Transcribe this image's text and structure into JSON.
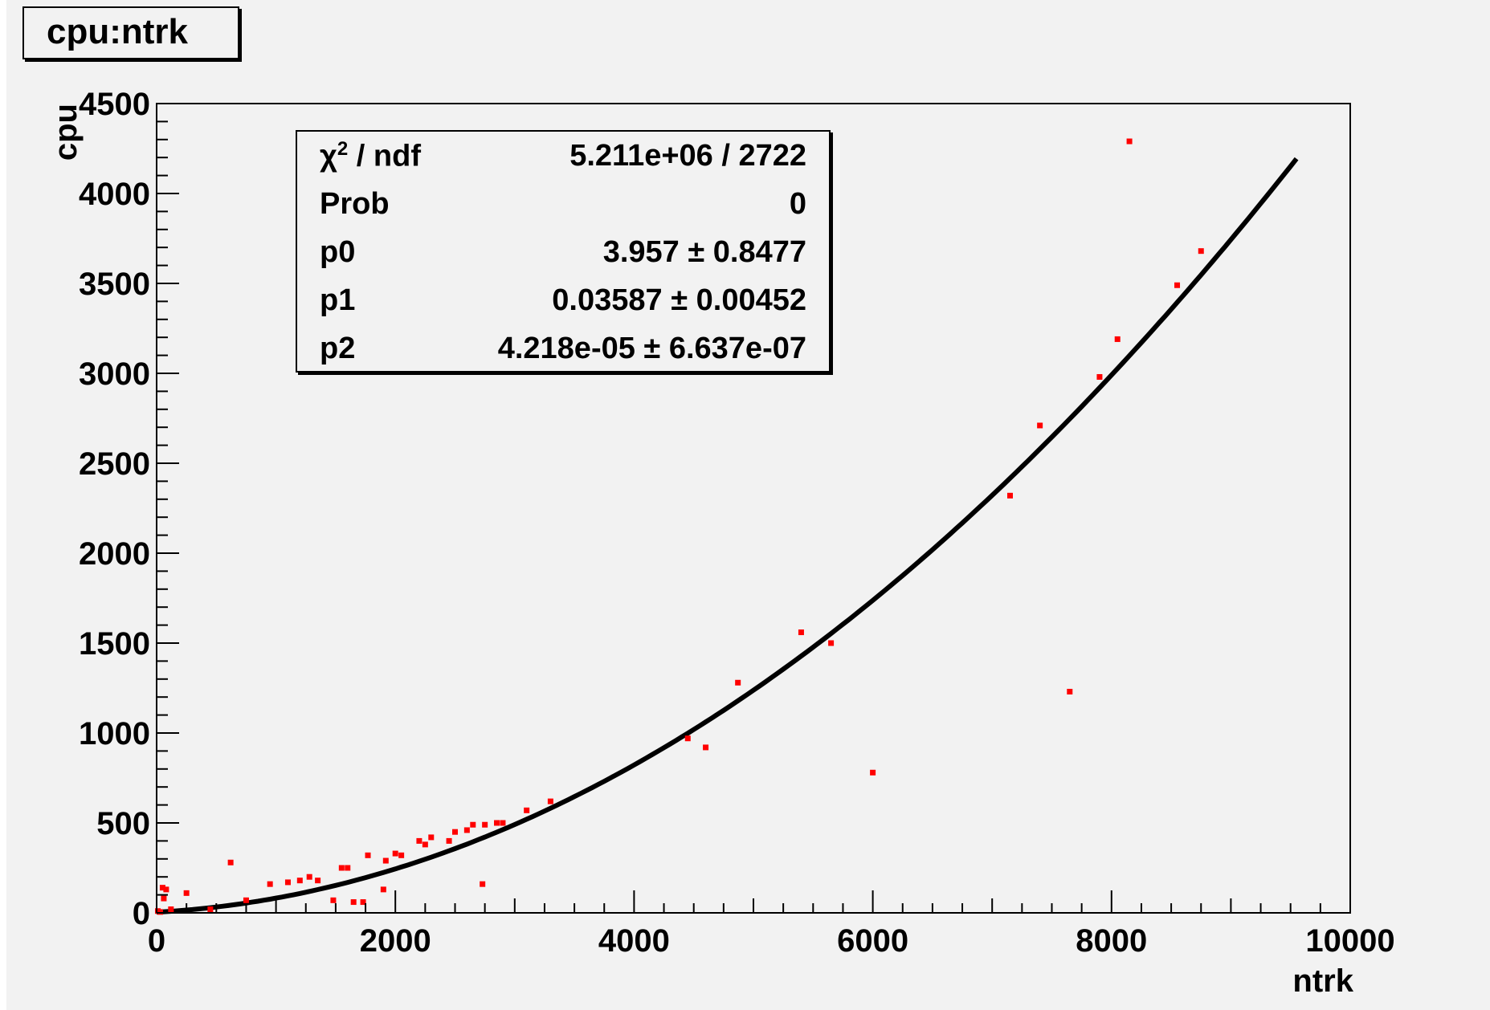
{
  "title": "cpu:ntrk",
  "stats": {
    "rows": [
      {
        "name": "χ² / ndf",
        "value": "5.211e+06 / 2722"
      },
      {
        "name": "Prob",
        "value": "0"
      },
      {
        "name": "p0",
        "value": "3.957 ± 0.8477"
      },
      {
        "name": "p1",
        "value": "0.03587 ± 0.00452"
      },
      {
        "name": "p2",
        "value": "4.218e-05 ± 6.637e-07"
      }
    ]
  },
  "chart_data": {
    "type": "scatter",
    "title": "cpu:ntrk",
    "xlabel": "ntrk",
    "ylabel": "cpu",
    "xlim": [
      0,
      10000
    ],
    "ylim": [
      0,
      4500
    ],
    "x_ticks": [
      "0",
      "2000",
      "4000",
      "6000",
      "8000",
      "10000"
    ],
    "y_ticks": [
      "0",
      "500",
      "1000",
      "1500",
      "2000",
      "2500",
      "3000",
      "3500",
      "4000",
      "4500"
    ],
    "colors": {
      "points": "#ff0000",
      "fit": "#000000"
    },
    "fit": {
      "type": "pol2",
      "p0": 3.957,
      "p1": 0.03587,
      "p2": 4.218e-05,
      "x_range": [
        0,
        9550
      ]
    },
    "points": [
      [
        10,
        10
      ],
      [
        30,
        5
      ],
      [
        50,
        140
      ],
      [
        60,
        80
      ],
      [
        80,
        130
      ],
      [
        120,
        20
      ],
      [
        250,
        110
      ],
      [
        450,
        20
      ],
      [
        620,
        280
      ],
      [
        750,
        70
      ],
      [
        950,
        160
      ],
      [
        1100,
        170
      ],
      [
        1200,
        180
      ],
      [
        1280,
        200
      ],
      [
        1350,
        180
      ],
      [
        1480,
        70
      ],
      [
        1550,
        250
      ],
      [
        1600,
        250
      ],
      [
        1650,
        60
      ],
      [
        1730,
        60
      ],
      [
        1770,
        320
      ],
      [
        1900,
        130
      ],
      [
        1920,
        290
      ],
      [
        2000,
        330
      ],
      [
        2050,
        320
      ],
      [
        2200,
        400
      ],
      [
        2250,
        380
      ],
      [
        2300,
        420
      ],
      [
        2450,
        400
      ],
      [
        2500,
        450
      ],
      [
        2600,
        460
      ],
      [
        2650,
        490
      ],
      [
        2730,
        160
      ],
      [
        2750,
        490
      ],
      [
        2850,
        500
      ],
      [
        2900,
        500
      ],
      [
        3100,
        570
      ],
      [
        3300,
        620
      ],
      [
        4450,
        970
      ],
      [
        4600,
        920
      ],
      [
        4870,
        1280
      ],
      [
        5400,
        1560
      ],
      [
        5650,
        1500
      ],
      [
        6000,
        780
      ],
      [
        7150,
        2320
      ],
      [
        7400,
        2710
      ],
      [
        7650,
        1230
      ],
      [
        7900,
        2980
      ],
      [
        8050,
        3190
      ],
      [
        8150,
        4290
      ],
      [
        8550,
        3490
      ],
      [
        8750,
        3680
      ]
    ]
  }
}
